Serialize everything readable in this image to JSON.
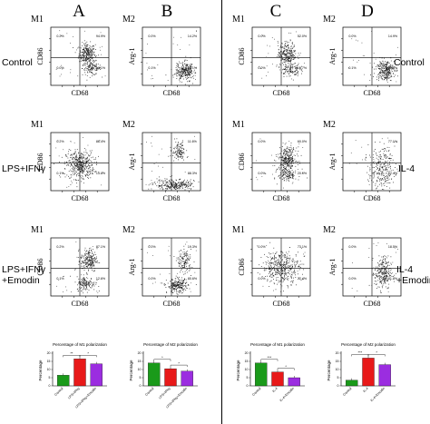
{
  "column_headers": [
    "A",
    "B",
    "C",
    "D"
  ],
  "left_row_labels": [
    "Control",
    "LPS+IFNγ",
    "LPS+IFNγ\n+Emodin"
  ],
  "right_row_labels": [
    "Control",
    "IL-4",
    "IL-4\n+Emodin"
  ],
  "colors": {
    "green": "#1a9a1a",
    "red": "#e81919",
    "purple": "#9b2de0",
    "dot": "#1a1a1a"
  },
  "chart_data": [
    {
      "type": "scatter",
      "panel": "A1",
      "panel_label": "M1",
      "ylabel": "CD86",
      "xlabel": "CD68",
      "quadrant_values": [
        "0.2%",
        "94.9%",
        "0.0%",
        "18.1%"
      ],
      "clusters": [
        {
          "cx": 0.62,
          "cy": 0.55,
          "sx": 0.07,
          "sy": 0.09,
          "n": 260
        },
        {
          "cx": 0.7,
          "cy": 0.3,
          "sx": 0.08,
          "sy": 0.06,
          "n": 120
        }
      ]
    },
    {
      "type": "scatter",
      "panel": "B1",
      "panel_label": "M2",
      "ylabel": "Arg-1",
      "xlabel": "CD68",
      "quadrant_values": [
        "0.0%",
        "14.2%",
        "0.1%",
        "85.1%"
      ],
      "clusters": [
        {
          "cx": 0.72,
          "cy": 0.25,
          "sx": 0.08,
          "sy": 0.08,
          "n": 280
        }
      ]
    },
    {
      "type": "scatter",
      "panel": "A2",
      "panel_label": "M1",
      "ylabel": "CD86",
      "xlabel": "CD68",
      "quadrant_values": [
        "0.2%",
        "86.4%",
        "0.1%",
        "13.8%"
      ],
      "clusters": [
        {
          "cx": 0.5,
          "cy": 0.45,
          "sx": 0.12,
          "sy": 0.12,
          "n": 420
        }
      ]
    },
    {
      "type": "scatter",
      "panel": "B2",
      "panel_label": "M2",
      "ylabel": "Arg-1",
      "xlabel": "CD68",
      "quadrant_values": [
        "",
        "11.6%",
        "",
        "88.3%"
      ],
      "clusters": [
        {
          "cx": 0.62,
          "cy": 0.68,
          "sx": 0.06,
          "sy": 0.08,
          "n": 120
        },
        {
          "cx": 0.55,
          "cy": 0.1,
          "sx": 0.18,
          "sy": 0.05,
          "n": 280
        }
      ]
    },
    {
      "type": "scatter",
      "panel": "A3",
      "panel_label": "M1",
      "ylabel": "CD86",
      "xlabel": "CD68",
      "quadrant_values": [
        "0.2%",
        "87.1%",
        "0.1%",
        "12.6%"
      ],
      "clusters": [
        {
          "cx": 0.65,
          "cy": 0.62,
          "sx": 0.07,
          "sy": 0.1,
          "n": 220
        },
        {
          "cx": 0.6,
          "cy": 0.22,
          "sx": 0.08,
          "sy": 0.06,
          "n": 140
        }
      ]
    },
    {
      "type": "scatter",
      "panel": "B3",
      "panel_label": "M2",
      "ylabel": "Arg-1",
      "xlabel": "CD68",
      "quadrant_values": [
        "0.0%",
        "19.3%",
        "0.0%",
        "80.6%"
      ],
      "clusters": [
        {
          "cx": 0.72,
          "cy": 0.6,
          "sx": 0.06,
          "sy": 0.1,
          "n": 130
        },
        {
          "cx": 0.6,
          "cy": 0.18,
          "sx": 0.09,
          "sy": 0.06,
          "n": 230
        }
      ]
    },
    {
      "type": "scatter",
      "panel": "C1",
      "panel_label": "M1",
      "ylabel": "CD86",
      "xlabel": "CD68",
      "quadrant_values": [
        "0.0%",
        "52.0%",
        "0.0%",
        "15.7%"
      ],
      "clusters": [
        {
          "cx": 0.6,
          "cy": 0.55,
          "sx": 0.08,
          "sy": 0.1,
          "n": 250
        },
        {
          "cx": 0.65,
          "cy": 0.28,
          "sx": 0.08,
          "sy": 0.06,
          "n": 120
        }
      ]
    },
    {
      "type": "scatter",
      "panel": "D1",
      "panel_label": "M2",
      "ylabel": "Arg-1",
      "xlabel": "CD68",
      "quadrant_values": [
        "0.0%",
        "14.9%",
        "0.1%",
        "85.0%"
      ],
      "clusters": [
        {
          "cx": 0.72,
          "cy": 0.27,
          "sx": 0.08,
          "sy": 0.09,
          "n": 280
        }
      ]
    },
    {
      "type": "scatter",
      "panel": "C2",
      "panel_label": "M1",
      "ylabel": "CD86",
      "xlabel": "CD68",
      "quadrant_values": [
        "0.0%",
        "60.0%",
        "0.0%",
        "20.0%"
      ],
      "clusters": [
        {
          "cx": 0.6,
          "cy": 0.55,
          "sx": 0.08,
          "sy": 0.1,
          "n": 300
        },
        {
          "cx": 0.6,
          "cy": 0.28,
          "sx": 0.08,
          "sy": 0.06,
          "n": 120
        }
      ]
    },
    {
      "type": "scatter",
      "panel": "D2",
      "panel_label": "M2",
      "ylabel": "Arg-1",
      "xlabel": "CD68",
      "quadrant_values": [
        "",
        "77.1%",
        "",
        "62.4%"
      ],
      "clusters": [
        {
          "cx": 0.66,
          "cy": 0.38,
          "sx": 0.11,
          "sy": 0.18,
          "n": 260
        }
      ]
    },
    {
      "type": "scatter",
      "panel": "C3",
      "panel_label": "M1",
      "ylabel": "CD86",
      "xlabel": "CD68",
      "quadrant_values": [
        "0.0%",
        "73.1%",
        "0.0%",
        "22.4%"
      ],
      "clusters": [
        {
          "cx": 0.5,
          "cy": 0.5,
          "sx": 0.16,
          "sy": 0.14,
          "n": 420
        }
      ]
    },
    {
      "type": "scatter",
      "panel": "D3",
      "panel_label": "M2",
      "ylabel": "Arg-1",
      "xlabel": "CD68",
      "quadrant_values": [
        "0.0%",
        "18.5%",
        "0.0%",
        "81.8%"
      ],
      "clusters": [
        {
          "cx": 0.68,
          "cy": 0.4,
          "sx": 0.07,
          "sy": 0.14,
          "n": 260
        }
      ]
    },
    {
      "type": "bar",
      "panel": "A4",
      "title": "Percentage of M1 polarization",
      "ylabel": "Percentage",
      "categories": [
        "Control",
        "LPS+IFNγ",
        "LPS+IFNγ+Emodin"
      ],
      "values": [
        6.5,
        16.5,
        13.5
      ],
      "ylim": [
        0,
        20
      ],
      "significance": [
        "**",
        "*"
      ]
    },
    {
      "type": "bar",
      "panel": "B4",
      "title": "Percentage of M2 polarization",
      "ylabel": "Percentage",
      "categories": [
        "Control",
        "LPS+IFNγ",
        "LPS+IFNγ+Emodin"
      ],
      "values": [
        14,
        10.5,
        9
      ],
      "ylim": [
        0,
        20
      ],
      "significance": [
        "*",
        "*"
      ]
    },
    {
      "type": "bar",
      "panel": "C4",
      "title": "Percentage of M1 polarization",
      "ylabel": "Percentage",
      "categories": [
        "Control",
        "IL-4",
        "IL-4+Emodin"
      ],
      "values": [
        14,
        8.5,
        5
      ],
      "ylim": [
        0,
        20
      ],
      "significance": [
        "***",
        "*"
      ]
    },
    {
      "type": "bar",
      "panel": "D4",
      "title": "Percentage of M2 polarization",
      "ylabel": "Percentage",
      "categories": [
        "Control",
        "IL-4",
        "IL-4+Emodin"
      ],
      "values": [
        3.5,
        17,
        13
      ],
      "ylim": [
        0,
        20
      ],
      "significance": [
        "***",
        "*"
      ]
    }
  ]
}
